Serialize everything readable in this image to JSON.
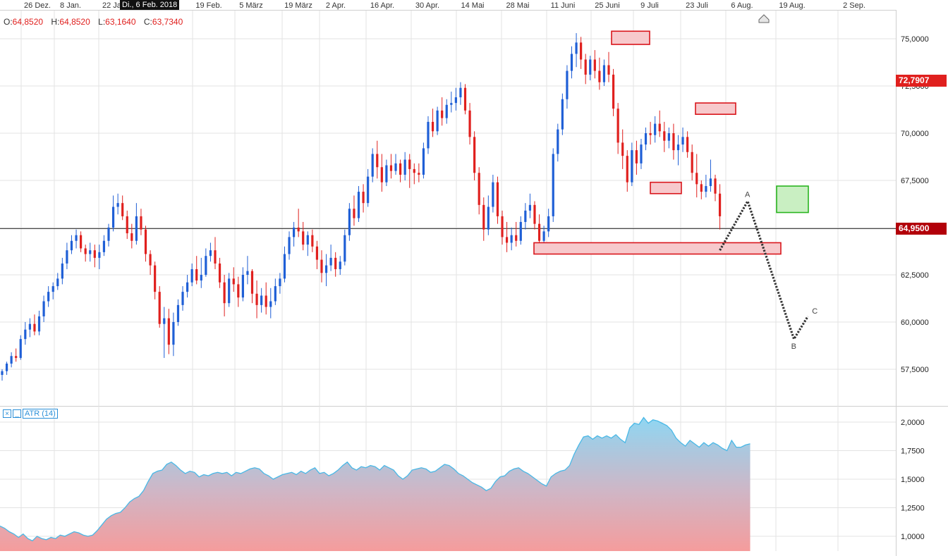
{
  "header": {
    "cursor_date": "Di., 6 Feb. 2018",
    "ohlc": [
      {
        "key": "O:",
        "value": "64,8520"
      },
      {
        "key": "H:",
        "value": "64,8520"
      },
      {
        "key": "L:",
        "value": "63,1640"
      },
      {
        "key": "C:",
        "value": "63,7340"
      }
    ]
  },
  "indicator": {
    "close_symbol": "×",
    "min_symbol": "_",
    "label": "ATR (14)"
  },
  "price_tags": {
    "current": "72,7907",
    "crosshair": "64,9500"
  },
  "colors": {
    "up": "#1f5fd6",
    "down": "#e0201e",
    "grid": "#e3e3e3",
    "zone_fill": "#f7c9cc",
    "zone_stroke": "#d9161c",
    "target_fill": "#c9efc2",
    "target_stroke": "#2ab520",
    "atr_line": "#49b8e6",
    "price_tag_red": "#e0201e",
    "price_tag_dark": "#b2000a"
  },
  "chart_data": [
    {
      "type": "candlestick",
      "date_labels": [
        "26 Dez.",
        "8 Jan.",
        "22 Jan.",
        "19 Feb.",
        "5 März",
        "19 März",
        "2 Apr.",
        "16 Apr.",
        "30 Apr.",
        "14 Mai",
        "28 Mai",
        "11 Juni",
        "25 Juni",
        "9 Juli",
        "23 Juli",
        "6 Aug.",
        "19 Aug.",
        "2 Sep."
      ],
      "y_ticks": [
        "57,5000",
        "60,0000",
        "62,5000",
        "65,0000",
        "67,5000",
        "70,0000",
        "72,5000",
        "75,0000"
      ],
      "ylim": [
        56.5,
        76.2
      ],
      "bars_key": "candles: [open, high, low, close], one per trading day",
      "candles": [
        [
          57.2,
          57.5,
          56.9,
          57.4
        ],
        [
          57.4,
          57.9,
          57.2,
          57.8
        ],
        [
          57.8,
          58.4,
          57.6,
          58.2
        ],
        [
          58.2,
          58.6,
          57.9,
          58.1
        ],
        [
          58.1,
          59.3,
          58.0,
          59.1
        ],
        [
          59.1,
          60.0,
          58.8,
          59.6
        ],
        [
          59.6,
          60.2,
          59.2,
          59.9
        ],
        [
          59.9,
          60.4,
          59.3,
          59.5
        ],
        [
          59.5,
          60.6,
          59.3,
          60.3
        ],
        [
          60.3,
          61.4,
          60.0,
          61.1
        ],
        [
          61.1,
          61.9,
          60.8,
          61.6
        ],
        [
          61.6,
          62.1,
          61.2,
          61.9
        ],
        [
          61.9,
          62.6,
          61.7,
          62.3
        ],
        [
          62.3,
          63.4,
          62.0,
          63.1
        ],
        [
          63.1,
          64.2,
          62.8,
          63.8
        ],
        [
          63.8,
          64.6,
          63.6,
          64.3
        ],
        [
          64.3,
          64.9,
          63.9,
          64.6
        ],
        [
          64.6,
          64.8,
          63.7,
          63.9
        ],
        [
          63.9,
          64.1,
          63.2,
          63.6
        ],
        [
          63.6,
          64.2,
          63.2,
          63.8
        ],
        [
          63.8,
          64.1,
          62.9,
          63.4
        ],
        [
          63.4,
          64.1,
          62.8,
          63.7
        ],
        [
          63.7,
          64.6,
          63.5,
          64.3
        ],
        [
          64.3,
          65.2,
          64.0,
          65.0
        ],
        [
          65.0,
          66.7,
          64.8,
          66.1
        ],
        [
          66.1,
          66.8,
          65.7,
          66.3
        ],
        [
          66.3,
          66.7,
          65.4,
          65.6
        ],
        [
          65.6,
          65.9,
          64.4,
          64.7
        ],
        [
          64.7,
          65.2,
          63.9,
          64.3
        ],
        [
          64.3,
          66.3,
          64.1,
          65.6
        ],
        [
          65.6,
          66.0,
          64.6,
          64.9
        ],
        [
          64.9,
          65.1,
          63.2,
          63.6
        ],
        [
          63.6,
          63.8,
          62.5,
          63.0
        ],
        [
          63.0,
          63.2,
          61.2,
          61.6
        ],
        [
          61.6,
          61.9,
          59.7,
          59.9
        ],
        [
          59.9,
          60.8,
          58.1,
          60.2
        ],
        [
          60.2,
          60.7,
          58.3,
          58.8
        ],
        [
          58.8,
          60.5,
          58.2,
          60.0
        ],
        [
          60.0,
          61.2,
          59.8,
          60.9
        ],
        [
          60.9,
          61.9,
          60.6,
          61.6
        ],
        [
          61.6,
          62.5,
          61.3,
          62.1
        ],
        [
          62.1,
          63.1,
          61.9,
          62.8
        ],
        [
          62.8,
          63.5,
          62.0,
          62.2
        ],
        [
          62.2,
          63.4,
          61.8,
          62.5
        ],
        [
          62.5,
          63.9,
          62.4,
          63.5
        ],
        [
          63.5,
          64.2,
          63.2,
          63.8
        ],
        [
          63.8,
          64.5,
          62.8,
          63.1
        ],
        [
          63.1,
          63.4,
          61.8,
          62.1
        ],
        [
          62.1,
          62.5,
          60.3,
          61.0
        ],
        [
          61.0,
          62.6,
          60.8,
          62.3
        ],
        [
          62.3,
          62.9,
          61.6,
          62.0
        ],
        [
          62.0,
          62.4,
          60.8,
          61.3
        ],
        [
          61.3,
          62.9,
          61.1,
          62.5
        ],
        [
          62.5,
          63.5,
          62.0,
          62.7
        ],
        [
          62.7,
          62.8,
          61.0,
          61.5
        ],
        [
          61.5,
          62.2,
          60.2,
          60.9
        ],
        [
          60.9,
          61.8,
          60.5,
          61.4
        ],
        [
          61.4,
          62.1,
          60.4,
          60.8
        ],
        [
          60.8,
          61.8,
          60.2,
          61.1
        ],
        [
          61.1,
          62.3,
          60.9,
          61.9
        ],
        [
          61.9,
          62.6,
          61.5,
          62.3
        ],
        [
          62.3,
          64.0,
          62.1,
          63.6
        ],
        [
          63.6,
          64.8,
          63.3,
          64.5
        ],
        [
          64.5,
          65.3,
          64.0,
          65.0
        ],
        [
          65.0,
          66.0,
          64.5,
          64.8
        ],
        [
          64.8,
          65.3,
          63.8,
          64.1
        ],
        [
          64.1,
          64.8,
          63.5,
          64.6
        ],
        [
          64.6,
          64.9,
          63.7,
          64.0
        ],
        [
          64.0,
          64.3,
          62.8,
          63.3
        ],
        [
          63.3,
          63.8,
          62.1,
          62.6
        ],
        [
          62.6,
          63.6,
          61.9,
          63.0
        ],
        [
          63.0,
          64.1,
          62.7,
          63.4
        ],
        [
          63.4,
          63.7,
          62.4,
          62.8
        ],
        [
          62.8,
          63.5,
          62.5,
          63.2
        ],
        [
          63.2,
          64.9,
          63.0,
          64.6
        ],
        [
          64.6,
          66.3,
          64.3,
          66.0
        ],
        [
          66.0,
          66.7,
          65.1,
          65.5
        ],
        [
          65.5,
          67.2,
          65.3,
          66.9
        ],
        [
          66.9,
          67.3,
          65.8,
          66.3
        ],
        [
          66.3,
          68.1,
          66.1,
          67.7
        ],
        [
          67.7,
          69.2,
          67.4,
          68.9
        ],
        [
          68.9,
          69.6,
          67.6,
          68.2
        ],
        [
          68.2,
          68.9,
          66.9,
          67.4
        ],
        [
          67.4,
          68.6,
          67.2,
          68.3
        ],
        [
          68.3,
          68.9,
          67.6,
          68.0
        ],
        [
          68.0,
          68.9,
          67.8,
          68.4
        ],
        [
          68.4,
          68.6,
          67.4,
          67.8
        ],
        [
          67.8,
          69.0,
          67.5,
          68.6
        ],
        [
          68.6,
          68.9,
          67.1,
          68.1
        ],
        [
          68.1,
          68.4,
          67.3,
          67.9
        ],
        [
          67.9,
          68.4,
          67.4,
          67.8
        ],
        [
          67.8,
          69.5,
          67.6,
          69.2
        ],
        [
          69.2,
          70.9,
          68.9,
          70.6
        ],
        [
          70.6,
          71.3,
          69.8,
          70.1
        ],
        [
          70.1,
          71.4,
          69.9,
          71.2
        ],
        [
          71.2,
          71.9,
          70.4,
          70.8
        ],
        [
          70.8,
          71.8,
          70.5,
          71.5
        ],
        [
          71.5,
          72.2,
          71.1,
          71.6
        ],
        [
          71.6,
          72.4,
          71.2,
          71.9
        ],
        [
          71.9,
          72.7,
          71.5,
          72.4
        ],
        [
          72.4,
          72.6,
          71.0,
          71.2
        ],
        [
          71.2,
          71.6,
          69.4,
          69.8
        ],
        [
          69.8,
          70.1,
          67.5,
          67.9
        ],
        [
          67.9,
          68.2,
          65.7,
          66.2
        ],
        [
          66.2,
          66.6,
          64.3,
          64.9
        ],
        [
          64.9,
          66.7,
          64.6,
          66.1
        ],
        [
          66.1,
          67.8,
          65.8,
          67.4
        ],
        [
          67.4,
          67.7,
          65.2,
          65.6
        ],
        [
          65.6,
          65.9,
          64.1,
          64.5
        ],
        [
          64.5,
          65.3,
          63.7,
          64.2
        ],
        [
          64.2,
          65.0,
          63.8,
          64.6
        ],
        [
          64.6,
          65.3,
          64.0,
          64.3
        ],
        [
          64.3,
          65.6,
          64.1,
          65.3
        ],
        [
          65.3,
          66.3,
          64.9,
          65.9
        ],
        [
          65.9,
          66.8,
          65.5,
          66.2
        ],
        [
          66.2,
          66.4,
          64.9,
          65.2
        ],
        [
          65.2,
          65.7,
          63.9,
          64.3
        ],
        [
          64.3,
          65.1,
          64.0,
          64.8
        ],
        [
          64.8,
          66.0,
          64.5,
          65.6
        ],
        [
          65.6,
          69.2,
          65.3,
          68.9
        ],
        [
          68.9,
          70.5,
          68.5,
          70.2
        ],
        [
          70.2,
          72.1,
          69.9,
          71.8
        ],
        [
          71.8,
          73.6,
          71.3,
          73.3
        ],
        [
          73.3,
          74.6,
          72.9,
          74.2
        ],
        [
          74.2,
          75.3,
          73.5,
          74.8
        ],
        [
          74.8,
          75.1,
          73.4,
          73.9
        ],
        [
          73.9,
          74.2,
          72.6,
          73.1
        ],
        [
          73.1,
          74.1,
          72.8,
          73.9
        ],
        [
          73.9,
          74.4,
          72.9,
          73.3
        ],
        [
          73.3,
          74.0,
          72.3,
          72.7
        ],
        [
          72.7,
          73.9,
          72.5,
          73.6
        ],
        [
          73.6,
          74.3,
          72.7,
          73.1
        ],
        [
          73.1,
          73.4,
          70.9,
          71.3
        ],
        [
          71.3,
          71.6,
          68.9,
          69.5
        ],
        [
          69.5,
          70.2,
          68.1,
          68.8
        ],
        [
          68.8,
          69.1,
          66.9,
          67.4
        ],
        [
          67.4,
          69.5,
          67.2,
          69.1
        ],
        [
          69.1,
          69.6,
          67.8,
          68.4
        ],
        [
          68.4,
          69.7,
          68.1,
          69.4
        ],
        [
          69.4,
          70.3,
          69.1,
          70.0
        ],
        [
          70.0,
          70.6,
          69.4,
          69.9
        ],
        [
          69.9,
          70.9,
          69.5,
          70.5
        ],
        [
          70.5,
          71.2,
          69.8,
          70.1
        ],
        [
          70.1,
          70.6,
          69.0,
          69.6
        ],
        [
          69.6,
          70.3,
          69.2,
          70.0
        ],
        [
          70.0,
          70.5,
          68.6,
          69.1
        ],
        [
          69.1,
          69.9,
          68.3,
          69.4
        ],
        [
          69.4,
          70.3,
          69.0,
          69.8
        ],
        [
          69.8,
          70.1,
          68.7,
          69.0
        ],
        [
          69.0,
          69.4,
          67.5,
          67.9
        ],
        [
          67.9,
          68.9,
          66.6,
          67.3
        ],
        [
          67.3,
          67.5,
          66.5,
          66.9
        ],
        [
          66.9,
          67.8,
          66.6,
          67.2
        ],
        [
          67.2,
          68.6,
          66.9,
          67.6
        ],
        [
          67.6,
          67.8,
          66.4,
          66.8
        ],
        [
          66.8,
          67.3,
          64.9,
          65.6
        ]
      ],
      "support_line": 64.95,
      "zones": [
        {
          "kind": "resistance",
          "x_from": 867,
          "x_to": 921,
          "y_from": 75.4,
          "y_to": 74.7
        },
        {
          "kind": "resistance",
          "x_from": 986,
          "x_to": 1043,
          "y_from": 71.6,
          "y_to": 71.0
        },
        {
          "kind": "support",
          "x_from": 922,
          "x_to": 966,
          "y_from": 67.4,
          "y_to": 66.8
        },
        {
          "kind": "support",
          "x_from": 757,
          "x_to": 1107,
          "y_from": 64.2,
          "y_to": 63.6
        }
      ],
      "projection": {
        "labels": [
          "A",
          "B",
          "C"
        ],
        "path": [
          {
            "day": 155,
            "value": 63.8
          },
          {
            "day": 161,
            "value": 66.4
          },
          {
            "day": 171,
            "value": 59.1
          },
          {
            "day": 174,
            "value": 60.3
          }
        ],
        "target_box": {
          "x_from": 1101,
          "x_to": 1146,
          "y_from": 67.2,
          "y_to": 65.8
        }
      }
    },
    {
      "type": "area",
      "label": "ATR (14)",
      "y_ticks": [
        "1,0000",
        "1,2500",
        "1,5000",
        "1,7500",
        "2,0000"
      ],
      "ylim": [
        0.95,
        2.05
      ],
      "values": [
        1.09,
        1.07,
        1.04,
        1.02,
        0.99,
        1.02,
        0.98,
        0.96,
        1.0,
        0.98,
        0.97,
        0.99,
        0.98,
        1.01,
        1.0,
        1.02,
        1.04,
        1.03,
        1.01,
        1.0,
        1.01,
        1.05,
        1.1,
        1.15,
        1.18,
        1.2,
        1.21,
        1.25,
        1.3,
        1.33,
        1.35,
        1.4,
        1.48,
        1.55,
        1.57,
        1.58,
        1.63,
        1.65,
        1.62,
        1.58,
        1.55,
        1.57,
        1.56,
        1.52,
        1.54,
        1.53,
        1.55,
        1.56,
        1.55,
        1.56,
        1.53,
        1.56,
        1.55,
        1.57,
        1.59,
        1.6,
        1.59,
        1.55,
        1.53,
        1.5,
        1.52,
        1.54,
        1.55,
        1.56,
        1.54,
        1.57,
        1.55,
        1.58,
        1.6,
        1.55,
        1.56,
        1.53,
        1.55,
        1.58,
        1.62,
        1.65,
        1.6,
        1.58,
        1.61,
        1.6,
        1.62,
        1.61,
        1.58,
        1.62,
        1.6,
        1.58,
        1.53,
        1.5,
        1.53,
        1.58,
        1.59,
        1.6,
        1.59,
        1.56,
        1.57,
        1.6,
        1.63,
        1.62,
        1.59,
        1.55,
        1.53,
        1.5,
        1.47,
        1.45,
        1.43,
        1.4,
        1.42,
        1.48,
        1.52,
        1.53,
        1.57,
        1.59,
        1.6,
        1.57,
        1.55,
        1.52,
        1.49,
        1.46,
        1.44,
        1.52,
        1.55,
        1.57,
        1.58,
        1.62,
        1.72,
        1.8,
        1.87,
        1.88,
        1.85,
        1.88,
        1.86,
        1.88,
        1.86,
        1.89,
        1.85,
        1.82,
        1.95,
        1.99,
        1.98,
        2.04,
        1.99,
        2.02,
        2.01,
        1.99,
        1.97,
        1.93,
        1.86,
        1.82,
        1.79,
        1.84,
        1.81,
        1.78,
        1.82,
        1.79,
        1.82,
        1.8,
        1.77,
        1.75,
        1.84,
        1.78,
        1.78,
        1.8,
        1.81
      ]
    }
  ]
}
